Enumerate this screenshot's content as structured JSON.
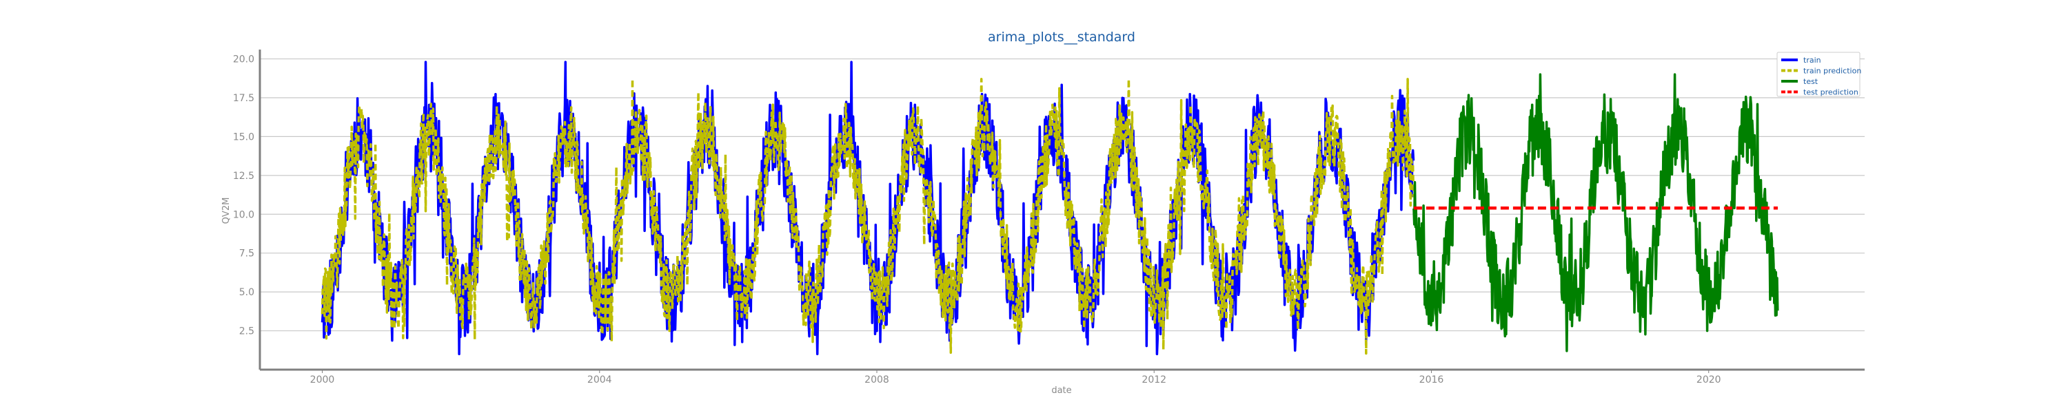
{
  "chart_data": {
    "type": "line",
    "title": "arima_plots__standard",
    "xlabel": "date",
    "ylabel": "QV2M",
    "xlim": [
      1999.1,
      2022.25
    ],
    "ylim": [
      0.0,
      20.6
    ],
    "x_ticks": [
      "2000",
      "2004",
      "2008",
      "2012",
      "2016",
      "2020"
    ],
    "y_ticks": [
      "2.5",
      "5.0",
      "7.5",
      "10.0",
      "12.5",
      "15.0",
      "17.5",
      "20.0"
    ],
    "grid": "horizontal",
    "legend_position": "top-right",
    "series": [
      {
        "name": "train",
        "color": "#0000ff",
        "style": "solid",
        "x_range": [
          "2000-01-01",
          "2015-09-30"
        ],
        "seasonal": {
          "mean": 9.8,
          "amplitude": 5.6,
          "noise": 2.6,
          "peak_month": "July"
        },
        "extremes": {
          "min": 1.0,
          "max": 19.8
        }
      },
      {
        "name": "train prediction",
        "color": "#bfbf00",
        "style": "dashed",
        "x_range": [
          "2000-01-01",
          "2015-09-30"
        ],
        "seasonal": {
          "mean": 9.8,
          "amplitude": 5.3,
          "noise": 2.2,
          "peak_month": "July"
        },
        "extremes": {
          "min": 1.0,
          "max": 18.7
        }
      },
      {
        "name": "test",
        "color": "#008000",
        "style": "solid",
        "x_range": [
          "2015-09-30",
          "2020-12-31"
        ],
        "seasonal": {
          "mean": 10.0,
          "amplitude": 5.5,
          "noise": 2.5,
          "peak_month": "July"
        },
        "extremes": {
          "min": 1.2,
          "max": 19.0
        }
      },
      {
        "name": "test prediction",
        "color": "#ff0000",
        "style": "dashed",
        "x": [
          "2015-09-30",
          "2020-12-31"
        ],
        "y": [
          10.4,
          10.4
        ]
      }
    ]
  }
}
